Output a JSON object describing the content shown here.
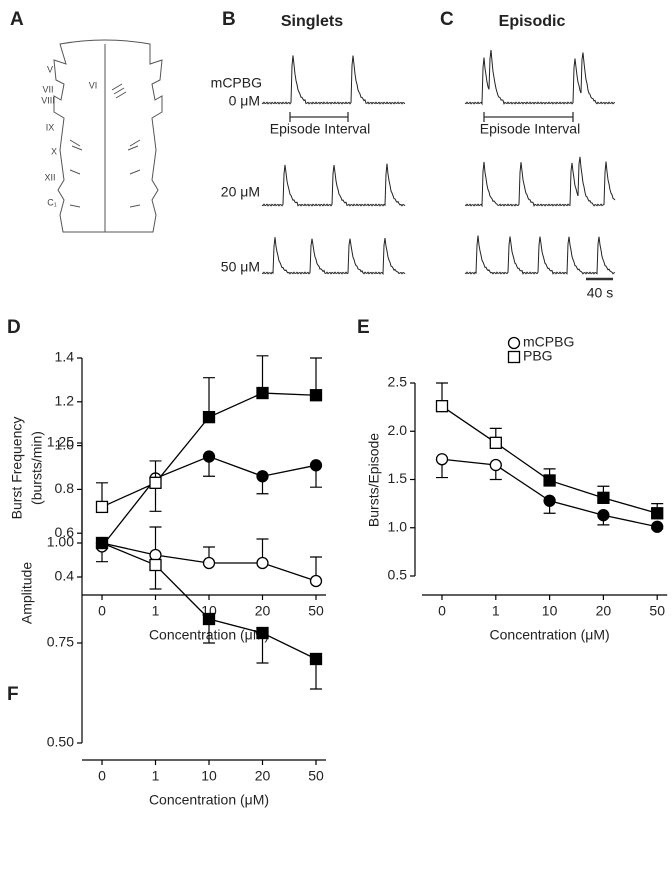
{
  "panel_labels": [
    "A",
    "B",
    "C"
  ],
  "brainstem": {
    "labels": [
      "V",
      "VI",
      "VII",
      "VIII",
      "IX",
      "X",
      "XII",
      "C₁"
    ]
  },
  "traces": {
    "singlets_title": "Singlets",
    "episodic_title": "Episodic",
    "drug": "mCPBG",
    "concentrations": [
      "0 μM",
      "20 μM",
      "50 μM"
    ],
    "interval_label": "Episode Interval",
    "scale_label": "40 s"
  },
  "chart_data": [
    {
      "type": "line",
      "panel": "D",
      "ylabel": [
        "Burst Frequency",
        "(bursts/min)"
      ],
      "xlabel": "Concentration (μM)",
      "categories": [
        "0",
        "1",
        "10",
        "20",
        "50"
      ],
      "ylim": [
        0.4,
        1.4
      ],
      "yticks": [
        0.4,
        0.6,
        0.8,
        {
          "value": 1,
          "label": "1.0"
        },
        1.2,
        1.4
      ],
      "series": [
        {
          "marker": "circle",
          "color": "#000000",
          "values": [
            0.54,
            0.85,
            0.95,
            0.86,
            0.91
          ],
          "errors": [
            0.07,
            0.15,
            0.09,
            0.08,
            0.1
          ],
          "error_direction": "down",
          "filled": [
            false,
            false,
            true,
            true,
            true
          ]
        },
        {
          "marker": "square",
          "color": "#000000",
          "values": [
            0.72,
            0.83,
            1.13,
            1.24,
            1.23
          ],
          "errors": [
            0.11,
            0.1,
            0.18,
            0.17,
            0.17
          ],
          "error_direction": "up",
          "filled": [
            false,
            false,
            true,
            true,
            true
          ]
        }
      ]
    },
    {
      "type": "line",
      "panel": "E",
      "ylabel": [
        "Bursts/Episode"
      ],
      "xlabel": "Concentration (μM)",
      "categories": [
        "0",
        "1",
        "10",
        "20",
        "50"
      ],
      "ylim": [
        0.5,
        2.5
      ],
      "yticks": [
        0.5,
        {
          "value": 1,
          "label": "1.0"
        },
        1.5,
        {
          "value": 2,
          "label": "2.0"
        },
        2.5
      ],
      "legend": "upper right",
      "series": [
        {
          "name": "mCPBG",
          "marker": "circle",
          "color": "#000000",
          "values": [
            1.71,
            1.65,
            1.28,
            1.13,
            1.01
          ],
          "errors": [
            0.19,
            0.15,
            0.13,
            0.1,
            0.02
          ],
          "error_direction": "down",
          "filled": [
            false,
            false,
            true,
            true,
            true
          ]
        },
        {
          "name": "PBG",
          "marker": "square",
          "color": "#000000",
          "values": [
            2.26,
            1.88,
            1.49,
            1.31,
            1.15
          ],
          "errors": [
            0.24,
            0.15,
            0.12,
            0.12,
            0.1
          ],
          "error_direction": "up",
          "filled": [
            false,
            false,
            true,
            true,
            true
          ]
        }
      ]
    },
    {
      "type": "line",
      "panel": "F",
      "ylabel": [
        "Amplitude"
      ],
      "xlabel": "Concentration (μM)",
      "categories": [
        "0",
        "1",
        "10",
        "20",
        "50"
      ],
      "ylim": [
        0.5,
        1.25
      ],
      "yticks": [
        {
          "value": 0.5,
          "label": "0.50"
        },
        {
          "value": 0.75,
          "label": "0.75"
        },
        {
          "value": 1,
          "label": "1.00"
        },
        {
          "value": 1.25,
          "label": "1.25"
        }
      ],
      "series": [
        {
          "marker": "circle",
          "color": "#000000",
          "values": [
            1.0,
            0.97,
            0.95,
            0.95,
            0.905
          ],
          "errors": [
            0,
            0.07,
            0.04,
            0.06,
            0.06
          ],
          "error_direction": "up",
          "filled": [
            false,
            false,
            false,
            false,
            false
          ]
        },
        {
          "marker": "square",
          "color": "#000000",
          "values": [
            1.0,
            0.945,
            0.81,
            0.775,
            0.71
          ],
          "errors": [
            0,
            0.06,
            0.06,
            0.075,
            0.075
          ],
          "error_direction": "down",
          "filled": [
            true,
            false,
            true,
            true,
            true
          ]
        }
      ]
    }
  ]
}
